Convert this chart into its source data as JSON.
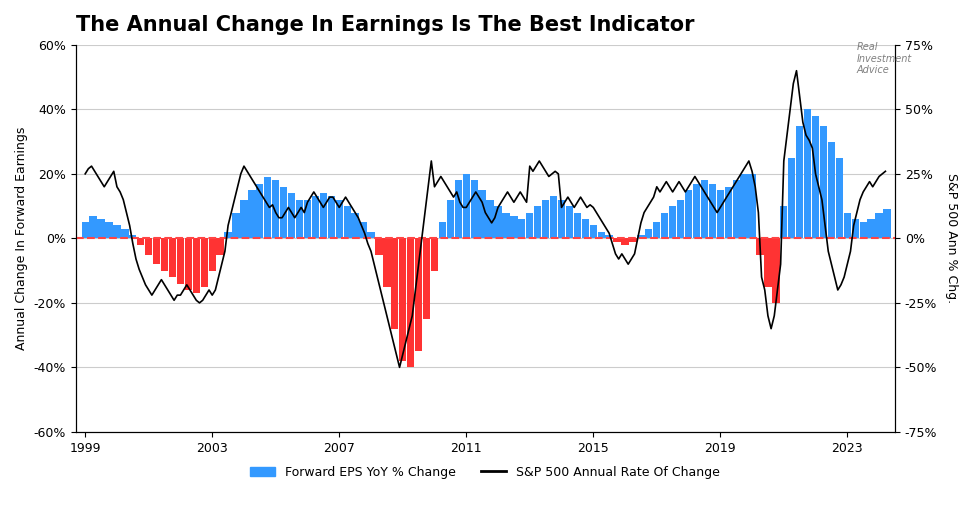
{
  "title": "The Annual Change In Earnings Is The Best Indicator",
  "ylabel_left": "Annual Change In Forward Earnings",
  "ylabel_right": "S&P 500 Ann % Chg.",
  "ylim_left": [
    -0.6,
    0.6
  ],
  "ylim_right": [
    -0.75,
    0.75
  ],
  "yticks_left": [
    -0.6,
    -0.4,
    -0.2,
    0.0,
    0.2,
    0.4,
    0.6
  ],
  "yticks_right": [
    -0.75,
    -0.5,
    -0.25,
    0.0,
    0.25,
    0.5,
    0.75
  ],
  "ytick_labels_left": [
    "-60%",
    "-40%",
    "-20%",
    "0%",
    "20%",
    "40%",
    "60%"
  ],
  "ytick_labels_right": [
    "-75%",
    "-50%",
    "-25%",
    "0%",
    "25%",
    "50%",
    "75%"
  ],
  "xticks": [
    1999,
    2003,
    2007,
    2011,
    2015,
    2019,
    2023
  ],
  "background_color": "#ffffff",
  "grid_color": "#cccccc",
  "bar_color_pos": "#3399ff",
  "bar_color_neg": "#ff3333",
  "line_color": "#000000",
  "zero_line_color": "#ff4444",
  "legend_eps_label": "Forward EPS YoY % Change",
  "legend_sp_label": "S&P 500 Annual Rate Of Change",
  "title_fontsize": 15,
  "axis_fontsize": 9,
  "legend_fontsize": 9,
  "eps_data": {
    "years": [
      1999.0,
      1999.25,
      1999.5,
      1999.75,
      2000.0,
      2000.25,
      2000.5,
      2000.75,
      2001.0,
      2001.25,
      2001.5,
      2001.75,
      2002.0,
      2002.25,
      2002.5,
      2002.75,
      2003.0,
      2003.25,
      2003.5,
      2003.75,
      2004.0,
      2004.25,
      2004.5,
      2004.75,
      2005.0,
      2005.25,
      2005.5,
      2005.75,
      2006.0,
      2006.25,
      2006.5,
      2006.75,
      2007.0,
      2007.25,
      2007.5,
      2007.75,
      2008.0,
      2008.25,
      2008.5,
      2008.75,
      2009.0,
      2009.25,
      2009.5,
      2009.75,
      2010.0,
      2010.25,
      2010.5,
      2010.75,
      2011.0,
      2011.25,
      2011.5,
      2011.75,
      2012.0,
      2012.25,
      2012.5,
      2012.75,
      2013.0,
      2013.25,
      2013.5,
      2013.75,
      2014.0,
      2014.25,
      2014.5,
      2014.75,
      2015.0,
      2015.25,
      2015.5,
      2015.75,
      2016.0,
      2016.25,
      2016.5,
      2016.75,
      2017.0,
      2017.25,
      2017.5,
      2017.75,
      2018.0,
      2018.25,
      2018.5,
      2018.75,
      2019.0,
      2019.25,
      2019.5,
      2019.75,
      2020.0,
      2020.25,
      2020.5,
      2020.75,
      2021.0,
      2021.25,
      2021.5,
      2021.75,
      2022.0,
      2022.25,
      2022.5,
      2022.75,
      2023.0,
      2023.25,
      2023.5,
      2023.75,
      2024.0,
      2024.25
    ],
    "values": [
      0.05,
      0.07,
      0.06,
      0.05,
      0.04,
      0.03,
      0.01,
      -0.02,
      -0.05,
      -0.08,
      -0.1,
      -0.12,
      -0.14,
      -0.16,
      -0.17,
      -0.15,
      -0.1,
      -0.05,
      0.02,
      0.08,
      0.12,
      0.15,
      0.17,
      0.19,
      0.18,
      0.16,
      0.14,
      0.12,
      0.12,
      0.13,
      0.14,
      0.13,
      0.12,
      0.1,
      0.08,
      0.05,
      0.02,
      -0.05,
      -0.15,
      -0.28,
      -0.38,
      -0.4,
      -0.35,
      -0.25,
      -0.1,
      0.05,
      0.12,
      0.18,
      0.2,
      0.18,
      0.15,
      0.12,
      0.1,
      0.08,
      0.07,
      0.06,
      0.08,
      0.1,
      0.12,
      0.13,
      0.12,
      0.1,
      0.08,
      0.06,
      0.04,
      0.02,
      0.01,
      -0.01,
      -0.02,
      -0.01,
      0.01,
      0.03,
      0.05,
      0.08,
      0.1,
      0.12,
      0.15,
      0.17,
      0.18,
      0.17,
      0.15,
      0.16,
      0.18,
      0.2,
      0.2,
      -0.05,
      -0.15,
      -0.2,
      0.1,
      0.25,
      0.35,
      0.4,
      0.38,
      0.35,
      0.3,
      0.25,
      0.08,
      0.06,
      0.05,
      0.06,
      0.08,
      0.09
    ]
  },
  "sp500_data": {
    "years": [
      1999.0,
      1999.1,
      1999.2,
      1999.3,
      1999.4,
      1999.5,
      1999.6,
      1999.7,
      1999.8,
      1999.9,
      2000.0,
      2000.1,
      2000.2,
      2000.3,
      2000.4,
      2000.5,
      2000.6,
      2000.7,
      2000.8,
      2000.9,
      2001.0,
      2001.1,
      2001.2,
      2001.3,
      2001.4,
      2001.5,
      2001.6,
      2001.7,
      2001.8,
      2001.9,
      2002.0,
      2002.1,
      2002.2,
      2002.3,
      2002.4,
      2002.5,
      2002.6,
      2002.7,
      2002.8,
      2002.9,
      2003.0,
      2003.1,
      2003.2,
      2003.3,
      2003.4,
      2003.5,
      2003.6,
      2003.7,
      2003.8,
      2003.9,
      2004.0,
      2004.1,
      2004.2,
      2004.3,
      2004.4,
      2004.5,
      2004.6,
      2004.7,
      2004.8,
      2004.9,
      2005.0,
      2005.1,
      2005.2,
      2005.3,
      2005.4,
      2005.5,
      2005.6,
      2005.7,
      2005.8,
      2005.9,
      2006.0,
      2006.1,
      2006.2,
      2006.3,
      2006.4,
      2006.5,
      2006.6,
      2006.7,
      2006.8,
      2006.9,
      2007.0,
      2007.1,
      2007.2,
      2007.3,
      2007.4,
      2007.5,
      2007.6,
      2007.7,
      2007.8,
      2007.9,
      2008.0,
      2008.1,
      2008.2,
      2008.3,
      2008.4,
      2008.5,
      2008.6,
      2008.7,
      2008.8,
      2008.9,
      2009.0,
      2009.1,
      2009.2,
      2009.3,
      2009.4,
      2009.5,
      2009.6,
      2009.7,
      2009.8,
      2009.9,
      2010.0,
      2010.1,
      2010.2,
      2010.3,
      2010.4,
      2010.5,
      2010.6,
      2010.7,
      2010.8,
      2010.9,
      2011.0,
      2011.1,
      2011.2,
      2011.3,
      2011.4,
      2011.5,
      2011.6,
      2011.7,
      2011.8,
      2011.9,
      2012.0,
      2012.1,
      2012.2,
      2012.3,
      2012.4,
      2012.5,
      2012.6,
      2012.7,
      2012.8,
      2012.9,
      2013.0,
      2013.1,
      2013.2,
      2013.3,
      2013.4,
      2013.5,
      2013.6,
      2013.7,
      2013.8,
      2013.9,
      2014.0,
      2014.1,
      2014.2,
      2014.3,
      2014.4,
      2014.5,
      2014.6,
      2014.7,
      2014.8,
      2014.9,
      2015.0,
      2015.1,
      2015.2,
      2015.3,
      2015.4,
      2015.5,
      2015.6,
      2015.7,
      2015.8,
      2015.9,
      2016.0,
      2016.1,
      2016.2,
      2016.3,
      2016.4,
      2016.5,
      2016.6,
      2016.7,
      2016.8,
      2016.9,
      2017.0,
      2017.1,
      2017.2,
      2017.3,
      2017.4,
      2017.5,
      2017.6,
      2017.7,
      2017.8,
      2017.9,
      2018.0,
      2018.1,
      2018.2,
      2018.3,
      2018.4,
      2018.5,
      2018.6,
      2018.7,
      2018.8,
      2018.9,
      2019.0,
      2019.1,
      2019.2,
      2019.3,
      2019.4,
      2019.5,
      2019.6,
      2019.7,
      2019.8,
      2019.9,
      2020.0,
      2020.1,
      2020.2,
      2020.3,
      2020.4,
      2020.5,
      2020.6,
      2020.7,
      2020.8,
      2020.9,
      2021.0,
      2021.1,
      2021.2,
      2021.3,
      2021.4,
      2021.5,
      2021.6,
      2021.7,
      2021.8,
      2021.9,
      2022.0,
      2022.1,
      2022.2,
      2022.3,
      2022.4,
      2022.5,
      2022.6,
      2022.7,
      2022.8,
      2022.9,
      2023.0,
      2023.1,
      2023.2,
      2023.3,
      2023.4,
      2023.5,
      2023.6,
      2023.7,
      2023.8,
      2023.9,
      2024.0,
      2024.1,
      2024.2
    ],
    "values": [
      0.25,
      0.27,
      0.28,
      0.26,
      0.24,
      0.22,
      0.2,
      0.22,
      0.24,
      0.26,
      0.2,
      0.18,
      0.15,
      0.1,
      0.05,
      -0.02,
      -0.08,
      -0.12,
      -0.15,
      -0.18,
      -0.2,
      -0.22,
      -0.2,
      -0.18,
      -0.16,
      -0.18,
      -0.2,
      -0.22,
      -0.24,
      -0.22,
      -0.22,
      -0.2,
      -0.18,
      -0.2,
      -0.22,
      -0.24,
      -0.25,
      -0.24,
      -0.22,
      -0.2,
      -0.22,
      -0.2,
      -0.15,
      -0.1,
      -0.05,
      0.05,
      0.1,
      0.15,
      0.2,
      0.25,
      0.28,
      0.26,
      0.24,
      0.22,
      0.2,
      0.18,
      0.16,
      0.14,
      0.12,
      0.13,
      0.1,
      0.08,
      0.08,
      0.1,
      0.12,
      0.1,
      0.08,
      0.1,
      0.12,
      0.1,
      0.14,
      0.16,
      0.18,
      0.16,
      0.14,
      0.12,
      0.14,
      0.16,
      0.16,
      0.14,
      0.12,
      0.14,
      0.16,
      0.14,
      0.12,
      0.1,
      0.08,
      0.05,
      0.02,
      -0.02,
      -0.05,
      -0.1,
      -0.15,
      -0.2,
      -0.25,
      -0.3,
      -0.35,
      -0.4,
      -0.45,
      -0.5,
      -0.45,
      -0.4,
      -0.35,
      -0.3,
      -0.2,
      -0.1,
      0.0,
      0.1,
      0.2,
      0.3,
      0.2,
      0.22,
      0.24,
      0.22,
      0.2,
      0.18,
      0.16,
      0.18,
      0.14,
      0.12,
      0.12,
      0.14,
      0.16,
      0.18,
      0.16,
      0.14,
      0.1,
      0.08,
      0.06,
      0.08,
      0.12,
      0.14,
      0.16,
      0.18,
      0.16,
      0.14,
      0.16,
      0.18,
      0.16,
      0.14,
      0.28,
      0.26,
      0.28,
      0.3,
      0.28,
      0.26,
      0.24,
      0.25,
      0.26,
      0.25,
      0.12,
      0.14,
      0.16,
      0.14,
      0.12,
      0.14,
      0.16,
      0.14,
      0.12,
      0.13,
      0.12,
      0.1,
      0.08,
      0.06,
      0.04,
      0.02,
      -0.02,
      -0.06,
      -0.08,
      -0.06,
      -0.08,
      -0.1,
      -0.08,
      -0.06,
      0.0,
      0.06,
      0.1,
      0.12,
      0.14,
      0.16,
      0.2,
      0.18,
      0.2,
      0.22,
      0.2,
      0.18,
      0.2,
      0.22,
      0.2,
      0.18,
      0.2,
      0.22,
      0.24,
      0.22,
      0.2,
      0.18,
      0.16,
      0.14,
      0.12,
      0.1,
      0.12,
      0.14,
      0.16,
      0.18,
      0.2,
      0.22,
      0.24,
      0.26,
      0.28,
      0.3,
      0.26,
      0.2,
      0.1,
      -0.15,
      -0.2,
      -0.3,
      -0.35,
      -0.3,
      -0.2,
      -0.1,
      0.3,
      0.4,
      0.5,
      0.6,
      0.65,
      0.55,
      0.45,
      0.4,
      0.38,
      0.35,
      0.25,
      0.2,
      0.15,
      0.05,
      -0.05,
      -0.1,
      -0.15,
      -0.2,
      -0.18,
      -0.15,
      -0.1,
      -0.05,
      0.05,
      0.1,
      0.15,
      0.18,
      0.2,
      0.22,
      0.2,
      0.22,
      0.24,
      0.25,
      0.26
    ]
  }
}
